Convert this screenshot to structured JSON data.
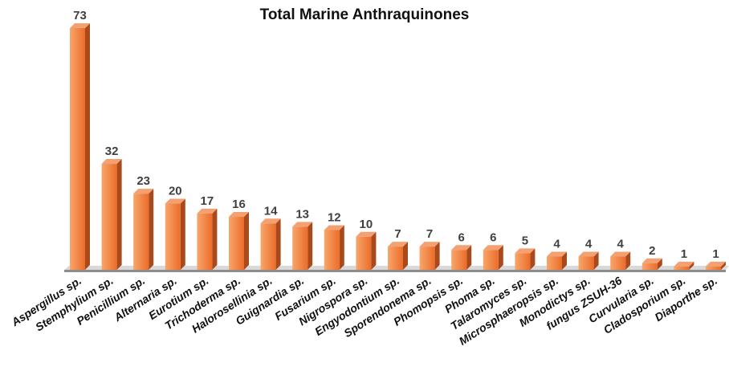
{
  "chart_data": {
    "type": "bar",
    "title": "Total Marine Anthraquinones",
    "categories": [
      "Aspergillus sp.",
      "Stemphylium sp.",
      "Penicillium sp.",
      "Alternaria sp.",
      "Eurotium sp.",
      "Trichoderma sp.",
      "Halorosellinia sp.",
      "Guignardia sp.",
      "Fusarium sp.",
      "Nigrospora sp.",
      "Engyodontium sp.",
      "Sporendonema sp.",
      "Phomopsis sp.",
      "Phoma sp.",
      "Talaromyces sp.",
      "Microsphaeropsis sp.",
      "Monodictys sp.",
      "fungus ZSUH-36",
      "Curvularia sp.",
      "Cladosporium sp.",
      "Diaporthe sp."
    ],
    "values": [
      73,
      32,
      23,
      20,
      17,
      16,
      14,
      13,
      12,
      10,
      7,
      7,
      6,
      6,
      5,
      4,
      4,
      4,
      2,
      1,
      1
    ],
    "xlabel": "",
    "ylabel": "",
    "ylim": [
      0,
      73
    ],
    "grid": false,
    "legend": "none",
    "data_labels": true,
    "colors": {
      "bar_front_light": "#f7a66b",
      "bar_front_dark": "#ec6c2a",
      "bar_side": "#a84a1c",
      "bar_top": "#f4a070",
      "floor": "#8c8c8c",
      "floor_edge": "#d9d9d9"
    }
  }
}
